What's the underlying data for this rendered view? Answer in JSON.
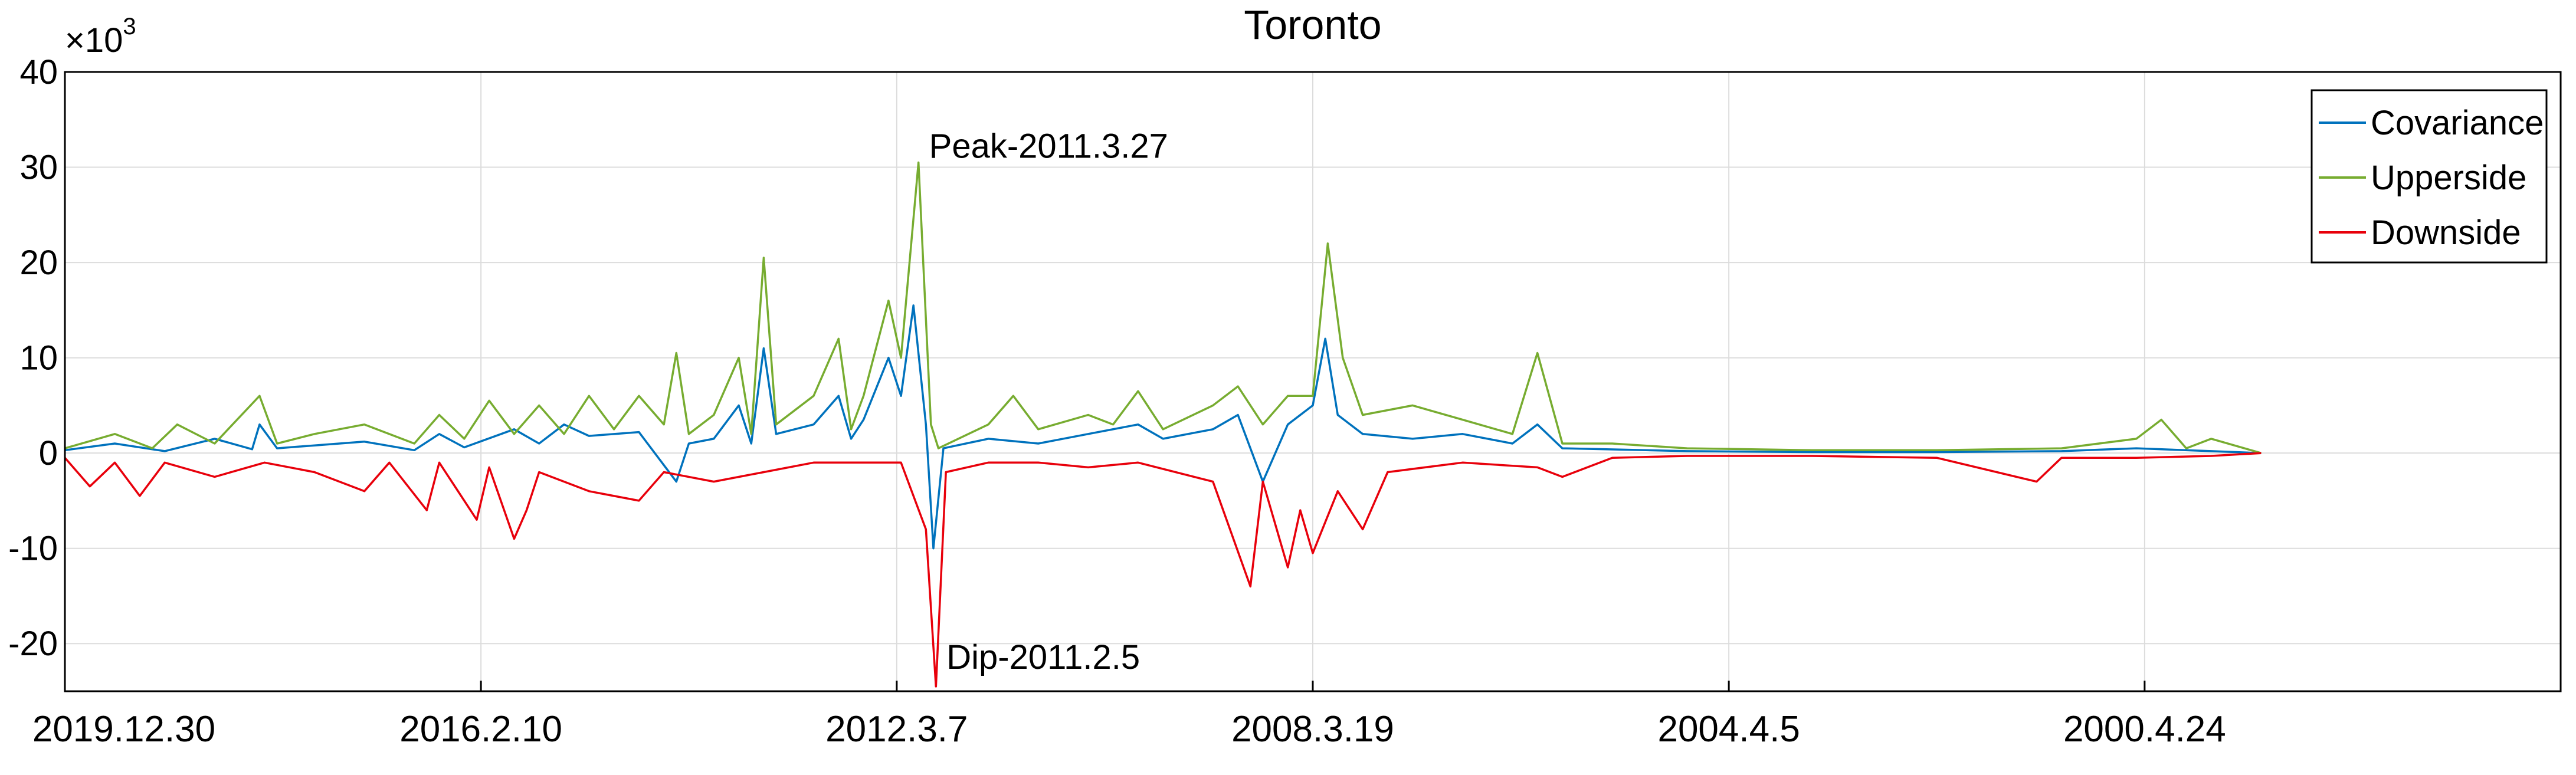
{
  "chart_data": {
    "type": "line",
    "title": "Toronto",
    "xlabel": "",
    "ylabel": "",
    "y_multiplier_label": "×10",
    "y_multiplier_exponent": "3",
    "ylim": [
      -25,
      40
    ],
    "yticks": [
      -20,
      -10,
      0,
      10,
      20,
      30,
      40
    ],
    "xlim": [
      0,
      1
    ],
    "xticks": [
      {
        "pos": 0.0,
        "label": "2019.12.30"
      },
      {
        "pos": 0.1667,
        "label": "2016.2.10"
      },
      {
        "pos": 0.3333,
        "label": "2012.3.7"
      },
      {
        "pos": 0.5,
        "label": "2008.3.19"
      },
      {
        "pos": 0.6667,
        "label": "2004.4.5"
      },
      {
        "pos": 0.8333,
        "label": "2000.4.24"
      }
    ],
    "grid": true,
    "legend_position": "top-right",
    "series": [
      {
        "name": "Covariance",
        "color": "#0072bd",
        "points": [
          [
            0.0,
            0.3
          ],
          [
            0.02,
            1.0
          ],
          [
            0.04,
            0.2
          ],
          [
            0.06,
            1.5
          ],
          [
            0.075,
            0.4
          ],
          [
            0.078,
            3.0
          ],
          [
            0.085,
            0.5
          ],
          [
            0.1,
            0.8
          ],
          [
            0.12,
            1.2
          ],
          [
            0.14,
            0.3
          ],
          [
            0.15,
            2.0
          ],
          [
            0.16,
            0.6
          ],
          [
            0.18,
            2.5
          ],
          [
            0.19,
            1.0
          ],
          [
            0.2,
            3.0
          ],
          [
            0.21,
            1.8
          ],
          [
            0.23,
            2.2
          ],
          [
            0.245,
            -3.0
          ],
          [
            0.25,
            1.0
          ],
          [
            0.26,
            1.5
          ],
          [
            0.27,
            5.0
          ],
          [
            0.275,
            1.0
          ],
          [
            0.28,
            11.0
          ],
          [
            0.285,
            2.0
          ],
          [
            0.3,
            3.0
          ],
          [
            0.31,
            6.0
          ],
          [
            0.315,
            1.5
          ],
          [
            0.32,
            3.5
          ],
          [
            0.33,
            10.0
          ],
          [
            0.335,
            6.0
          ],
          [
            0.34,
            15.5
          ],
          [
            0.345,
            3.0
          ],
          [
            0.348,
            -10.0
          ],
          [
            0.352,
            0.5
          ],
          [
            0.37,
            1.5
          ],
          [
            0.39,
            1.0
          ],
          [
            0.41,
            2.0
          ],
          [
            0.43,
            3.0
          ],
          [
            0.44,
            1.5
          ],
          [
            0.46,
            2.5
          ],
          [
            0.47,
            4.0
          ],
          [
            0.48,
            -3.0
          ],
          [
            0.49,
            3.0
          ],
          [
            0.5,
            5.0
          ],
          [
            0.505,
            12.0
          ],
          [
            0.51,
            4.0
          ],
          [
            0.52,
            2.0
          ],
          [
            0.54,
            1.5
          ],
          [
            0.56,
            2.0
          ],
          [
            0.58,
            1.0
          ],
          [
            0.59,
            3.0
          ],
          [
            0.6,
            0.5
          ],
          [
            0.65,
            0.2
          ],
          [
            0.7,
            0.1
          ],
          [
            0.75,
            0.1
          ],
          [
            0.8,
            0.2
          ],
          [
            0.83,
            0.5
          ],
          [
            0.86,
            0.2
          ],
          [
            0.88,
            0.0
          ]
        ]
      },
      {
        "name": "Upperside",
        "color": "#77ac30",
        "points": [
          [
            0.0,
            0.5
          ],
          [
            0.02,
            2.0
          ],
          [
            0.035,
            0.5
          ],
          [
            0.045,
            3.0
          ],
          [
            0.06,
            1.0
          ],
          [
            0.078,
            6.0
          ],
          [
            0.085,
            1.0
          ],
          [
            0.1,
            2.0
          ],
          [
            0.12,
            3.0
          ],
          [
            0.14,
            1.0
          ],
          [
            0.15,
            4.0
          ],
          [
            0.16,
            1.5
          ],
          [
            0.17,
            5.5
          ],
          [
            0.18,
            2.0
          ],
          [
            0.19,
            5.0
          ],
          [
            0.2,
            2.0
          ],
          [
            0.21,
            6.0
          ],
          [
            0.22,
            2.5
          ],
          [
            0.23,
            6.0
          ],
          [
            0.24,
            3.0
          ],
          [
            0.245,
            10.5
          ],
          [
            0.25,
            2.0
          ],
          [
            0.26,
            4.0
          ],
          [
            0.27,
            10.0
          ],
          [
            0.275,
            2.0
          ],
          [
            0.28,
            20.5
          ],
          [
            0.285,
            3.0
          ],
          [
            0.3,
            6.0
          ],
          [
            0.31,
            12.0
          ],
          [
            0.315,
            2.5
          ],
          [
            0.32,
            6.0
          ],
          [
            0.33,
            16.0
          ],
          [
            0.335,
            10.0
          ],
          [
            0.342,
            30.5
          ],
          [
            0.347,
            3.0
          ],
          [
            0.35,
            0.5
          ],
          [
            0.37,
            3.0
          ],
          [
            0.38,
            6.0
          ],
          [
            0.39,
            2.5
          ],
          [
            0.41,
            4.0
          ],
          [
            0.42,
            3.0
          ],
          [
            0.43,
            6.5
          ],
          [
            0.44,
            2.5
          ],
          [
            0.46,
            5.0
          ],
          [
            0.47,
            7.0
          ],
          [
            0.48,
            3.0
          ],
          [
            0.49,
            6.0
          ],
          [
            0.5,
            6.0
          ],
          [
            0.506,
            22.0
          ],
          [
            0.512,
            10.0
          ],
          [
            0.52,
            4.0
          ],
          [
            0.54,
            5.0
          ],
          [
            0.56,
            3.5
          ],
          [
            0.58,
            2.0
          ],
          [
            0.59,
            10.5
          ],
          [
            0.6,
            1.0
          ],
          [
            0.62,
            1.0
          ],
          [
            0.65,
            0.5
          ],
          [
            0.7,
            0.3
          ],
          [
            0.75,
            0.3
          ],
          [
            0.8,
            0.5
          ],
          [
            0.83,
            1.5
          ],
          [
            0.84,
            3.5
          ],
          [
            0.85,
            0.5
          ],
          [
            0.86,
            1.5
          ],
          [
            0.88,
            0.0
          ]
        ]
      },
      {
        "name": "Downside",
        "color": "#e8000b",
        "points": [
          [
            0.0,
            -0.5
          ],
          [
            0.01,
            -3.5
          ],
          [
            0.02,
            -1.0
          ],
          [
            0.03,
            -4.5
          ],
          [
            0.04,
            -1.0
          ],
          [
            0.06,
            -2.5
          ],
          [
            0.08,
            -1.0
          ],
          [
            0.1,
            -2.0
          ],
          [
            0.12,
            -4.0
          ],
          [
            0.13,
            -1.0
          ],
          [
            0.145,
            -6.0
          ],
          [
            0.15,
            -1.0
          ],
          [
            0.165,
            -7.0
          ],
          [
            0.17,
            -1.5
          ],
          [
            0.18,
            -9.0
          ],
          [
            0.185,
            -6.0
          ],
          [
            0.19,
            -2.0
          ],
          [
            0.21,
            -4.0
          ],
          [
            0.23,
            -5.0
          ],
          [
            0.24,
            -2.0
          ],
          [
            0.26,
            -3.0
          ],
          [
            0.28,
            -2.0
          ],
          [
            0.3,
            -1.0
          ],
          [
            0.32,
            -1.0
          ],
          [
            0.335,
            -1.0
          ],
          [
            0.345,
            -8.0
          ],
          [
            0.349,
            -24.5
          ],
          [
            0.353,
            -2.0
          ],
          [
            0.37,
            -1.0
          ],
          [
            0.39,
            -1.0
          ],
          [
            0.41,
            -1.5
          ],
          [
            0.43,
            -1.0
          ],
          [
            0.46,
            -3.0
          ],
          [
            0.475,
            -14.0
          ],
          [
            0.48,
            -3.0
          ],
          [
            0.49,
            -12.0
          ],
          [
            0.495,
            -6.0
          ],
          [
            0.5,
            -10.5
          ],
          [
            0.51,
            -4.0
          ],
          [
            0.52,
            -8.0
          ],
          [
            0.53,
            -2.0
          ],
          [
            0.56,
            -1.0
          ],
          [
            0.59,
            -1.5
          ],
          [
            0.6,
            -2.5
          ],
          [
            0.62,
            -0.5
          ],
          [
            0.65,
            -0.3
          ],
          [
            0.7,
            -0.3
          ],
          [
            0.75,
            -0.5
          ],
          [
            0.79,
            -3.0
          ],
          [
            0.8,
            -0.5
          ],
          [
            0.83,
            -0.5
          ],
          [
            0.86,
            -0.3
          ],
          [
            0.88,
            0.0
          ]
        ]
      }
    ],
    "annotations": [
      {
        "text": "Peak-2011.3.27",
        "x": 0.342,
        "y": 30.5
      },
      {
        "text": "Dip-2011.2.5",
        "x": 0.349,
        "y": -24.5
      }
    ]
  }
}
